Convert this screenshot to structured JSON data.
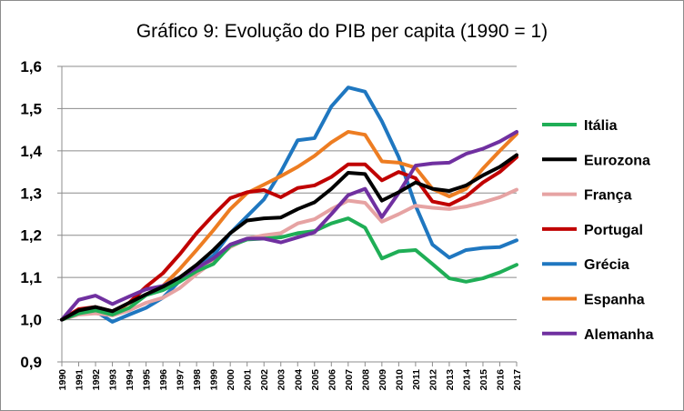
{
  "chart_data": {
    "type": "line",
    "title": "Gráfico 9: Evolução do PIB per capita (1990 = 1)",
    "xlabel": "",
    "ylabel": "",
    "ylim": [
      0.9,
      1.6
    ],
    "yticks": [
      "0,9",
      "1,0",
      "1,1",
      "1,2",
      "1,3",
      "1,4",
      "1,5",
      "1,6"
    ],
    "ytick_values": [
      0.9,
      1.0,
      1.1,
      1.2,
      1.3,
      1.4,
      1.5,
      1.6
    ],
    "grid": "horizontal",
    "legend": "right",
    "categories": [
      "1990",
      "1991",
      "1992",
      "1993",
      "1994",
      "1995",
      "1996",
      "1997",
      "1998",
      "1999",
      "2000",
      "2001",
      "2002",
      "2003",
      "2004",
      "2005",
      "2006",
      "2007",
      "2008",
      "2009",
      "2010",
      "2011",
      "2012",
      "2013",
      "2014",
      "2015",
      "2016",
      "2017"
    ],
    "series": [
      {
        "name": "Grécia",
        "color": "#1f77c0",
        "values": [
          1.0,
          1.02,
          1.02,
          0.995,
          1.012,
          1.028,
          1.052,
          1.092,
          1.122,
          1.152,
          1.205,
          1.245,
          1.285,
          1.35,
          1.425,
          1.43,
          1.505,
          1.55,
          1.54,
          1.47,
          1.385,
          1.27,
          1.178,
          1.147,
          1.165,
          1.17,
          1.172,
          1.188
        ]
      },
      {
        "name": "Espanha",
        "color": "#ed7d22",
        "values": [
          1.0,
          1.02,
          1.025,
          1.015,
          1.04,
          1.058,
          1.08,
          1.12,
          1.165,
          1.212,
          1.262,
          1.3,
          1.32,
          1.34,
          1.362,
          1.388,
          1.42,
          1.445,
          1.438,
          1.375,
          1.372,
          1.36,
          1.31,
          1.292,
          1.31,
          1.358,
          1.4,
          1.44
        ]
      },
      {
        "name": "Portugal",
        "color": "#c00000",
        "values": [
          1.0,
          1.025,
          1.03,
          1.02,
          1.04,
          1.078,
          1.11,
          1.155,
          1.205,
          1.248,
          1.288,
          1.302,
          1.307,
          1.29,
          1.312,
          1.318,
          1.338,
          1.368,
          1.368,
          1.33,
          1.35,
          1.335,
          1.28,
          1.272,
          1.292,
          1.325,
          1.35,
          1.385
        ]
      },
      {
        "name": "França",
        "color": "#e6a3a3",
        "values": [
          1.0,
          1.012,
          1.015,
          1.01,
          1.022,
          1.04,
          1.052,
          1.075,
          1.108,
          1.138,
          1.172,
          1.192,
          1.2,
          1.205,
          1.228,
          1.238,
          1.262,
          1.282,
          1.277,
          1.232,
          1.25,
          1.27,
          1.265,
          1.262,
          1.268,
          1.278,
          1.29,
          1.308
        ]
      },
      {
        "name": "Itália",
        "color": "#1fae56",
        "values": [
          1.0,
          1.015,
          1.022,
          1.012,
          1.028,
          1.058,
          1.07,
          1.09,
          1.115,
          1.132,
          1.175,
          1.19,
          1.192,
          1.195,
          1.205,
          1.21,
          1.228,
          1.24,
          1.218,
          1.145,
          1.162,
          1.165,
          1.132,
          1.098,
          1.09,
          1.098,
          1.112,
          1.13
        ]
      },
      {
        "name": "Alemanha",
        "color": "#7030a0",
        "values": [
          1.0,
          1.047,
          1.057,
          1.037,
          1.055,
          1.072,
          1.08,
          1.1,
          1.122,
          1.145,
          1.178,
          1.192,
          1.192,
          1.183,
          1.195,
          1.207,
          1.25,
          1.295,
          1.31,
          1.243,
          1.3,
          1.365,
          1.37,
          1.372,
          1.393,
          1.405,
          1.422,
          1.445
        ]
      },
      {
        "name": "Eurozona",
        "color": "#000000",
        "values": [
          1.0,
          1.022,
          1.03,
          1.02,
          1.04,
          1.06,
          1.078,
          1.1,
          1.13,
          1.165,
          1.205,
          1.235,
          1.24,
          1.242,
          1.262,
          1.278,
          1.31,
          1.348,
          1.345,
          1.282,
          1.302,
          1.325,
          1.31,
          1.305,
          1.318,
          1.342,
          1.362,
          1.39
        ]
      }
    ],
    "legend_order": [
      "Itália",
      "Eurozona",
      "França",
      "Portugal",
      "Grécia",
      "Espanha",
      "Alemanha"
    ]
  }
}
